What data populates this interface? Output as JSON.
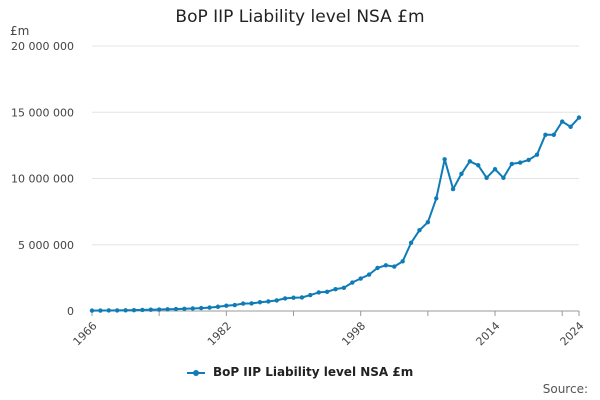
{
  "chart_data": {
    "type": "line",
    "title": "BoP IIP Liability level NSA £m",
    "unit": "£m",
    "xlabel": "",
    "ylabel": "",
    "ylim": [
      0,
      20000000
    ],
    "yticks": [
      {
        "value": 0,
        "label": "0"
      },
      {
        "value": 5000000,
        "label": "5 000 000"
      },
      {
        "value": 10000000,
        "label": "10 000 000"
      },
      {
        "value": 15000000,
        "label": "15 000 000"
      },
      {
        "value": 20000000,
        "label": "20 000 000"
      }
    ],
    "xlim": [
      1966,
      2024
    ],
    "xticks": [
      "1966",
      "1982",
      "1998",
      "2014",
      "2024"
    ],
    "grid": true,
    "legend_position": "bottom",
    "x": [
      1966,
      1967,
      1968,
      1969,
      1970,
      1971,
      1972,
      1973,
      1974,
      1975,
      1976,
      1977,
      1978,
      1979,
      1980,
      1981,
      1982,
      1983,
      1984,
      1985,
      1986,
      1987,
      1988,
      1989,
      1990,
      1991,
      1992,
      1993,
      1994,
      1995,
      1996,
      1997,
      1998,
      1999,
      2000,
      2001,
      2002,
      2003,
      2004,
      2005,
      2006,
      2007,
      2008,
      2009,
      2010,
      2011,
      2012,
      2013,
      2014,
      2015,
      2016,
      2017,
      2018,
      2019,
      2020,
      2021,
      2022,
      2023,
      2024
    ],
    "series": [
      {
        "name": "BoP IIP Liability level NSA £m",
        "color": "#0f7cb7",
        "values": [
          30000,
          35000,
          40000,
          45000,
          55000,
          65000,
          80000,
          95000,
          110000,
          125000,
          145000,
          165000,
          190000,
          220000,
          260000,
          320000,
          400000,
          450000,
          560000,
          570000,
          660000,
          720000,
          800000,
          950000,
          1000000,
          1020000,
          1200000,
          1400000,
          1450000,
          1650000,
          1750000,
          2150000,
          2450000,
          2750000,
          3250000,
          3450000,
          3350000,
          3750000,
          5150000,
          6100000,
          6700000,
          8500000,
          11450000,
          9200000,
          10350000,
          11300000,
          11000000,
          10050000,
          10700000,
          10050000,
          11100000,
          11200000,
          11400000,
          11800000,
          13300000,
          13300000,
          14300000,
          13900000,
          14600000
        ]
      }
    ]
  },
  "legend": {
    "label": "BoP IIP Liability level NSA £m"
  },
  "source": {
    "label": "Source:"
  }
}
